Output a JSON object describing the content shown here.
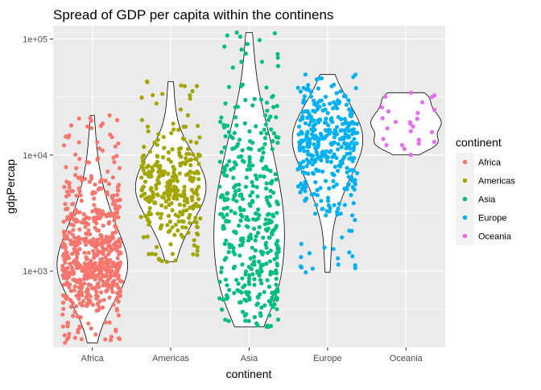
{
  "chart_data": {
    "type": "scatter",
    "title": "Spread of GDP per capita within the continens",
    "xlabel": "continent",
    "ylabel": "gdpPercap",
    "y_scale": "log10",
    "ylim": [
      220,
      130000
    ],
    "y_ticks": [
      {
        "value": 1000,
        "label": "1e+03"
      },
      {
        "value": 10000,
        "label": "1e+04"
      },
      {
        "value": 100000,
        "label": "1e+05"
      }
    ],
    "categories": [
      "Africa",
      "Americas",
      "Asia",
      "Europe",
      "Oceania"
    ],
    "grid": true,
    "legend": {
      "title": "continent",
      "placement": "right"
    },
    "overlay": "violin",
    "series": [
      {
        "name": "Africa",
        "color": "#F8766D",
        "count": 624,
        "min": 241,
        "max": 21951,
        "median": 1192,
        "quantiles": [
          [
            0,
            241
          ],
          [
            0.05,
            450
          ],
          [
            0.15,
            650
          ],
          [
            0.3,
            900
          ],
          [
            0.5,
            1192
          ],
          [
            0.7,
            1900
          ],
          [
            0.85,
            3500
          ],
          [
            0.95,
            7000
          ],
          [
            1,
            21951
          ]
        ]
      },
      {
        "name": "Americas",
        "color": "#A3A500",
        "count": 300,
        "min": 1202,
        "max": 42952,
        "median": 5466,
        "quantiles": [
          [
            0,
            1202
          ],
          [
            0.05,
            1900
          ],
          [
            0.15,
            2800
          ],
          [
            0.3,
            4000
          ],
          [
            0.5,
            5466
          ],
          [
            0.7,
            7200
          ],
          [
            0.85,
            10500
          ],
          [
            0.95,
            18000
          ],
          [
            1,
            42952
          ]
        ]
      },
      {
        "name": "Asia",
        "color": "#00BF7D",
        "count": 396,
        "min": 331,
        "max": 113523,
        "median": 2647,
        "quantiles": [
          [
            0,
            331
          ],
          [
            0.05,
            500
          ],
          [
            0.15,
            750
          ],
          [
            0.3,
            1300
          ],
          [
            0.5,
            2647
          ],
          [
            0.7,
            5500
          ],
          [
            0.85,
            13000
          ],
          [
            0.95,
            30000
          ],
          [
            1,
            113523
          ]
        ]
      },
      {
        "name": "Europe",
        "color": "#00B0F6",
        "count": 360,
        "min": 974,
        "max": 49357,
        "median": 12082,
        "quantiles": [
          [
            0,
            974
          ],
          [
            0.05,
            3000
          ],
          [
            0.15,
            5000
          ],
          [
            0.3,
            8000
          ],
          [
            0.5,
            12082
          ],
          [
            0.7,
            17000
          ],
          [
            0.85,
            23000
          ],
          [
            0.95,
            30000
          ],
          [
            1,
            49357
          ]
        ]
      },
      {
        "name": "Oceania",
        "color": "#E76BF3",
        "count": 24,
        "min": 10040,
        "max": 34435,
        "median": 17983,
        "quantiles": [
          [
            0,
            10040
          ],
          [
            0.15,
            11500
          ],
          [
            0.3,
            14000
          ],
          [
            0.5,
            17983
          ],
          [
            0.7,
            21500
          ],
          [
            0.85,
            26000
          ],
          [
            1,
            34435
          ]
        ]
      }
    ]
  }
}
